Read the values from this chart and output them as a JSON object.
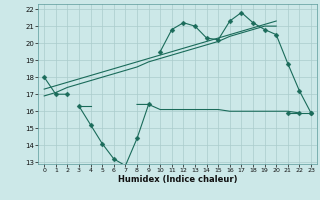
{
  "xlabel": "Humidex (Indice chaleur)",
  "bg_color": "#cce8e8",
  "grid_color": "#aacccc",
  "line_color": "#1a6b5a",
  "x": [
    0,
    1,
    2,
    3,
    4,
    5,
    6,
    7,
    8,
    9,
    10,
    11,
    12,
    13,
    14,
    15,
    16,
    17,
    18,
    19,
    20,
    21,
    22,
    23
  ],
  "y_main": [
    18,
    17,
    17,
    null,
    null,
    null,
    null,
    null,
    null,
    null,
    19.5,
    20.8,
    21.2,
    21.0,
    20.3,
    20.2,
    21.3,
    21.8,
    21.2,
    20.8,
    20.5,
    18.8,
    17.2,
    15.9
  ],
  "y_low": [
    null,
    null,
    null,
    16.3,
    15.2,
    14.1,
    13.2,
    12.8,
    14.4,
    16.4,
    null,
    null,
    null,
    null,
    null,
    null,
    null,
    null,
    null,
    null,
    null,
    15.9,
    15.9,
    15.9
  ],
  "y_flat": [
    null,
    null,
    null,
    16.3,
    16.3,
    null,
    null,
    null,
    16.4,
    16.4,
    16.1,
    16.1,
    16.1,
    16.1,
    16.1,
    16.1,
    16.0,
    16.0,
    16.0,
    16.0,
    16.0,
    16.0,
    15.9,
    null
  ],
  "trend1": [
    17.3,
    17.5,
    17.7,
    17.9,
    18.1,
    18.3,
    18.5,
    18.7,
    18.9,
    19.1,
    19.3,
    19.5,
    19.7,
    19.9,
    20.1,
    20.3,
    20.5,
    20.7,
    20.9,
    21.1,
    21.3,
    null,
    null,
    null
  ],
  "trend2": [
    16.9,
    17.1,
    17.4,
    17.6,
    17.8,
    18.0,
    18.2,
    18.4,
    18.6,
    18.9,
    19.1,
    19.3,
    19.5,
    19.7,
    19.9,
    20.1,
    20.4,
    20.6,
    20.8,
    21.0,
    21.0,
    null,
    null,
    null
  ],
  "ylim": [
    13,
    22
  ],
  "yticks": [
    13,
    14,
    15,
    16,
    17,
    18,
    19,
    20,
    21,
    22
  ],
  "xticks": [
    0,
    1,
    2,
    3,
    4,
    5,
    6,
    7,
    8,
    9,
    10,
    11,
    12,
    13,
    14,
    15,
    16,
    17,
    18,
    19,
    20,
    21,
    22,
    23
  ],
  "marker": "D",
  "markersize": 2.5
}
